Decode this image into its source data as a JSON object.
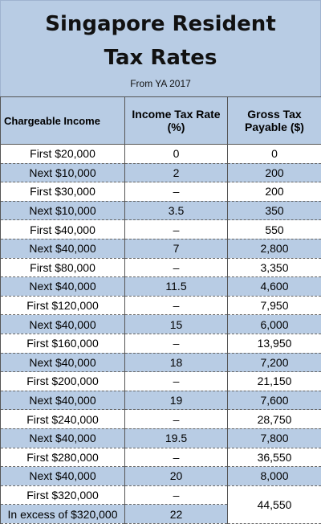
{
  "header": {
    "title": [
      "Singapore Resident",
      "Tax Rates"
    ],
    "subtitle": "From YA 2017"
  },
  "table": {
    "columns": [
      "Chargeable Income",
      "Income Tax Rate (%)",
      "Gross Tax Payable ($)"
    ],
    "rows": [
      [
        "First $20,000",
        "0",
        "0"
      ],
      [
        "Next $10,000",
        "2",
        "200"
      ],
      [
        "First $30,000",
        "–",
        "200"
      ],
      [
        "Next $10,000",
        "3.5",
        "350"
      ],
      [
        "First $40,000",
        "–",
        "550"
      ],
      [
        "Next $40,000",
        "7",
        "2,800"
      ],
      [
        "First $80,000",
        "–",
        "3,350"
      ],
      [
        "Next $40,000",
        "11.5",
        "4,600"
      ],
      [
        "First $120,000",
        "–",
        "7,950"
      ],
      [
        "Next $40,000",
        "15",
        "6,000"
      ],
      [
        "First $160,000",
        "–",
        "13,950"
      ],
      [
        "Next $40,000",
        "18",
        "7,200"
      ],
      [
        "First $200,000",
        "–",
        "21,150"
      ],
      [
        "Next $40,000",
        "19",
        "7,600"
      ],
      [
        "First $240,000",
        "–",
        "28,750"
      ],
      [
        "Next $40,000",
        "19.5",
        "7,800"
      ],
      [
        "First $280,000",
        "–",
        "36,550"
      ],
      [
        "Next $40,000",
        "20",
        "8,000"
      ],
      [
        "First $320,000",
        "–",
        "44,550"
      ],
      [
        "In excess of $320,000",
        "22"
      ]
    ]
  }
}
